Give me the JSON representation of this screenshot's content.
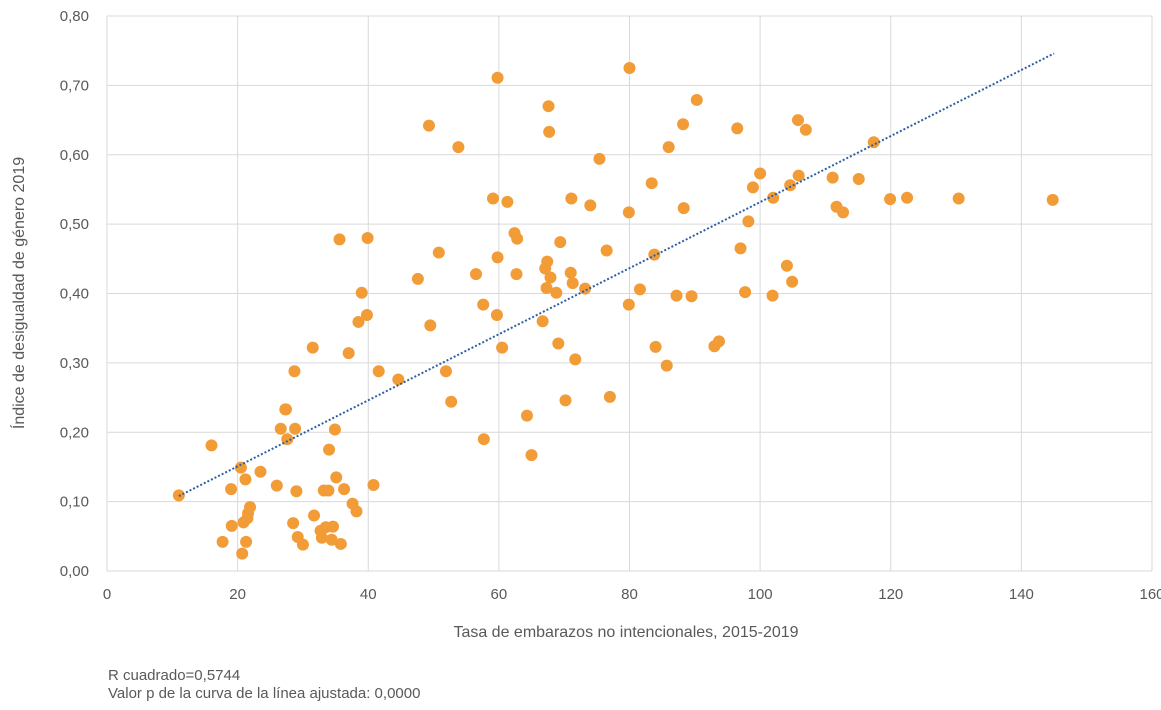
{
  "chart_data": {
    "type": "scatter",
    "xlabel": "Tasa de embarazos no intencionales, 2015-2019",
    "ylabel": "Índice de desigualdad de género 2019",
    "xlim": [
      0,
      160
    ],
    "ylim": [
      0,
      0.8
    ],
    "x_ticks": [
      0,
      20,
      40,
      60,
      80,
      100,
      120,
      140,
      160
    ],
    "x_tick_labels": [
      "0",
      "20",
      "40",
      "60",
      "80",
      "100",
      "120",
      "140",
      "160"
    ],
    "y_ticks": [
      0,
      0.1,
      0.2,
      0.3,
      0.4,
      0.5,
      0.6,
      0.7,
      0.8
    ],
    "y_tick_labels": [
      "0,00",
      "0,10",
      "0,20",
      "0,30",
      "0,40",
      "0,50",
      "0,60",
      "0,70",
      "0,80"
    ],
    "grid": true,
    "marker_color": "#f29c38",
    "trendline_color": "#2e5fa3",
    "trendline": {
      "type": "linear",
      "x": [
        11,
        145
      ],
      "y": [
        0.108,
        0.746
      ]
    },
    "points": [
      [
        11.0,
        0.109
      ],
      [
        16.0,
        0.181
      ],
      [
        17.7,
        0.042
      ],
      [
        19.0,
        0.118
      ],
      [
        19.1,
        0.065
      ],
      [
        20.5,
        0.149
      ],
      [
        20.7,
        0.025
      ],
      [
        20.9,
        0.07
      ],
      [
        21.2,
        0.132
      ],
      [
        21.3,
        0.042
      ],
      [
        21.5,
        0.076
      ],
      [
        21.6,
        0.083
      ],
      [
        21.9,
        0.092
      ],
      [
        23.5,
        0.143
      ],
      [
        26.0,
        0.123
      ],
      [
        26.6,
        0.205
      ],
      [
        27.3,
        0.233
      ],
      [
        27.4,
        0.233
      ],
      [
        27.6,
        0.19
      ],
      [
        28.5,
        0.069
      ],
      [
        28.7,
        0.288
      ],
      [
        28.8,
        0.205
      ],
      [
        29.0,
        0.115
      ],
      [
        29.2,
        0.049
      ],
      [
        30.0,
        0.038
      ],
      [
        31.5,
        0.322
      ],
      [
        31.7,
        0.08
      ],
      [
        32.7,
        0.058
      ],
      [
        32.9,
        0.048
      ],
      [
        33.2,
        0.116
      ],
      [
        33.5,
        0.063
      ],
      [
        33.9,
        0.116
      ],
      [
        34.0,
        0.175
      ],
      [
        34.4,
        0.045
      ],
      [
        34.6,
        0.064
      ],
      [
        34.9,
        0.204
      ],
      [
        35.1,
        0.135
      ],
      [
        35.6,
        0.478
      ],
      [
        35.8,
        0.039
      ],
      [
        36.3,
        0.118
      ],
      [
        37.0,
        0.314
      ],
      [
        37.6,
        0.097
      ],
      [
        38.2,
        0.086
      ],
      [
        38.5,
        0.359
      ],
      [
        39.0,
        0.401
      ],
      [
        39.8,
        0.369
      ],
      [
        39.9,
        0.48
      ],
      [
        40.8,
        0.124
      ],
      [
        41.6,
        0.288
      ],
      [
        44.6,
        0.276
      ],
      [
        47.6,
        0.421
      ],
      [
        49.3,
        0.642
      ],
      [
        49.5,
        0.354
      ],
      [
        50.8,
        0.459
      ],
      [
        51.9,
        0.288
      ],
      [
        52.7,
        0.244
      ],
      [
        53.8,
        0.611
      ],
      [
        56.5,
        0.428
      ],
      [
        57.6,
        0.384
      ],
      [
        57.7,
        0.19
      ],
      [
        59.1,
        0.537
      ],
      [
        59.7,
        0.369
      ],
      [
        59.8,
        0.452
      ],
      [
        59.8,
        0.711
      ],
      [
        60.5,
        0.322
      ],
      [
        61.3,
        0.532
      ],
      [
        62.4,
        0.487
      ],
      [
        62.7,
        0.428
      ],
      [
        62.8,
        0.479
      ],
      [
        64.3,
        0.224
      ],
      [
        65.0,
        0.167
      ],
      [
        66.7,
        0.36
      ],
      [
        67.1,
        0.436
      ],
      [
        67.3,
        0.408
      ],
      [
        67.4,
        0.446
      ],
      [
        67.6,
        0.67
      ],
      [
        67.7,
        0.633
      ],
      [
        67.9,
        0.423
      ],
      [
        68.8,
        0.401
      ],
      [
        69.1,
        0.328
      ],
      [
        69.4,
        0.474
      ],
      [
        70.2,
        0.246
      ],
      [
        71.0,
        0.43
      ],
      [
        71.1,
        0.537
      ],
      [
        71.3,
        0.415
      ],
      [
        71.7,
        0.305
      ],
      [
        73.2,
        0.407
      ],
      [
        74.0,
        0.527
      ],
      [
        75.4,
        0.594
      ],
      [
        76.5,
        0.462
      ],
      [
        77.0,
        0.251
      ],
      [
        79.9,
        0.517
      ],
      [
        79.9,
        0.384
      ],
      [
        80.0,
        0.725
      ],
      [
        81.6,
        0.406
      ],
      [
        83.4,
        0.559
      ],
      [
        83.8,
        0.456
      ],
      [
        84.0,
        0.323
      ],
      [
        85.7,
        0.296
      ],
      [
        86.0,
        0.611
      ],
      [
        87.2,
        0.397
      ],
      [
        88.2,
        0.644
      ],
      [
        88.3,
        0.523
      ],
      [
        89.5,
        0.396
      ],
      [
        90.3,
        0.679
      ],
      [
        93.0,
        0.324
      ],
      [
        93.7,
        0.331
      ],
      [
        96.5,
        0.638
      ],
      [
        97.0,
        0.465
      ],
      [
        97.7,
        0.402
      ],
      [
        98.2,
        0.504
      ],
      [
        98.9,
        0.553
      ],
      [
        100.0,
        0.573
      ],
      [
        101.9,
        0.397
      ],
      [
        102.0,
        0.538
      ],
      [
        104.1,
        0.44
      ],
      [
        104.6,
        0.556
      ],
      [
        104.9,
        0.417
      ],
      [
        105.8,
        0.65
      ],
      [
        105.9,
        0.57
      ],
      [
        107.0,
        0.636
      ],
      [
        111.1,
        0.567
      ],
      [
        111.7,
        0.525
      ],
      [
        112.7,
        0.517
      ],
      [
        115.1,
        0.565
      ],
      [
        117.4,
        0.618
      ],
      [
        119.9,
        0.536
      ],
      [
        122.5,
        0.538
      ],
      [
        130.4,
        0.537
      ],
      [
        144.8,
        0.535
      ]
    ]
  },
  "notes": {
    "line1": "R cuadrado=0,5744",
    "line2": "Valor p de la curva de la línea ajustada: 0,0000"
  }
}
